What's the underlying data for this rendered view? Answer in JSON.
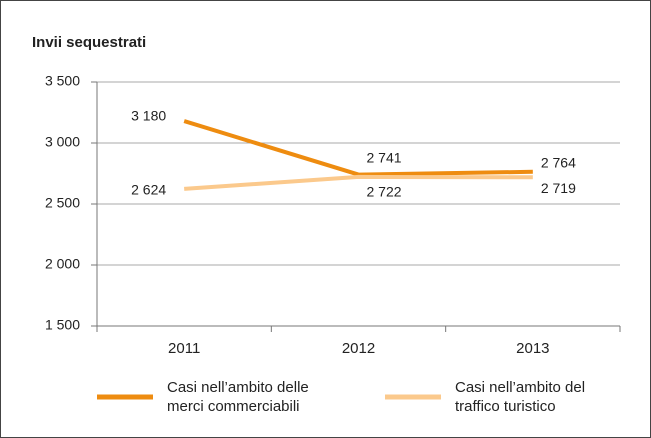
{
  "chart_data": {
    "type": "line",
    "title": "Invii sequestrati",
    "categories": [
      "2011",
      "2012",
      "2013"
    ],
    "series": [
      {
        "name": "Casi nell’ambito delle merci commerciabili",
        "color": "#ee8c10",
        "values": [
          3180,
          2741,
          2764
        ],
        "value_labels": [
          "3 180",
          "2 741",
          "2 764"
        ]
      },
      {
        "name": "Casi nell’ambito del traffico turistico",
        "color": "#fbc98c",
        "values": [
          2624,
          2722,
          2719
        ],
        "value_labels": [
          "2 624",
          "2 722",
          "2 719"
        ]
      }
    ],
    "ylim": [
      1500,
      3500
    ],
    "yticks": [
      {
        "value": 1500,
        "label": "1 500"
      },
      {
        "value": 2000,
        "label": "2 000"
      },
      {
        "value": 2500,
        "label": "2 500"
      },
      {
        "value": 3000,
        "label": "3 000"
      },
      {
        "value": 3500,
        "label": "3 500"
      }
    ],
    "grid": true
  }
}
